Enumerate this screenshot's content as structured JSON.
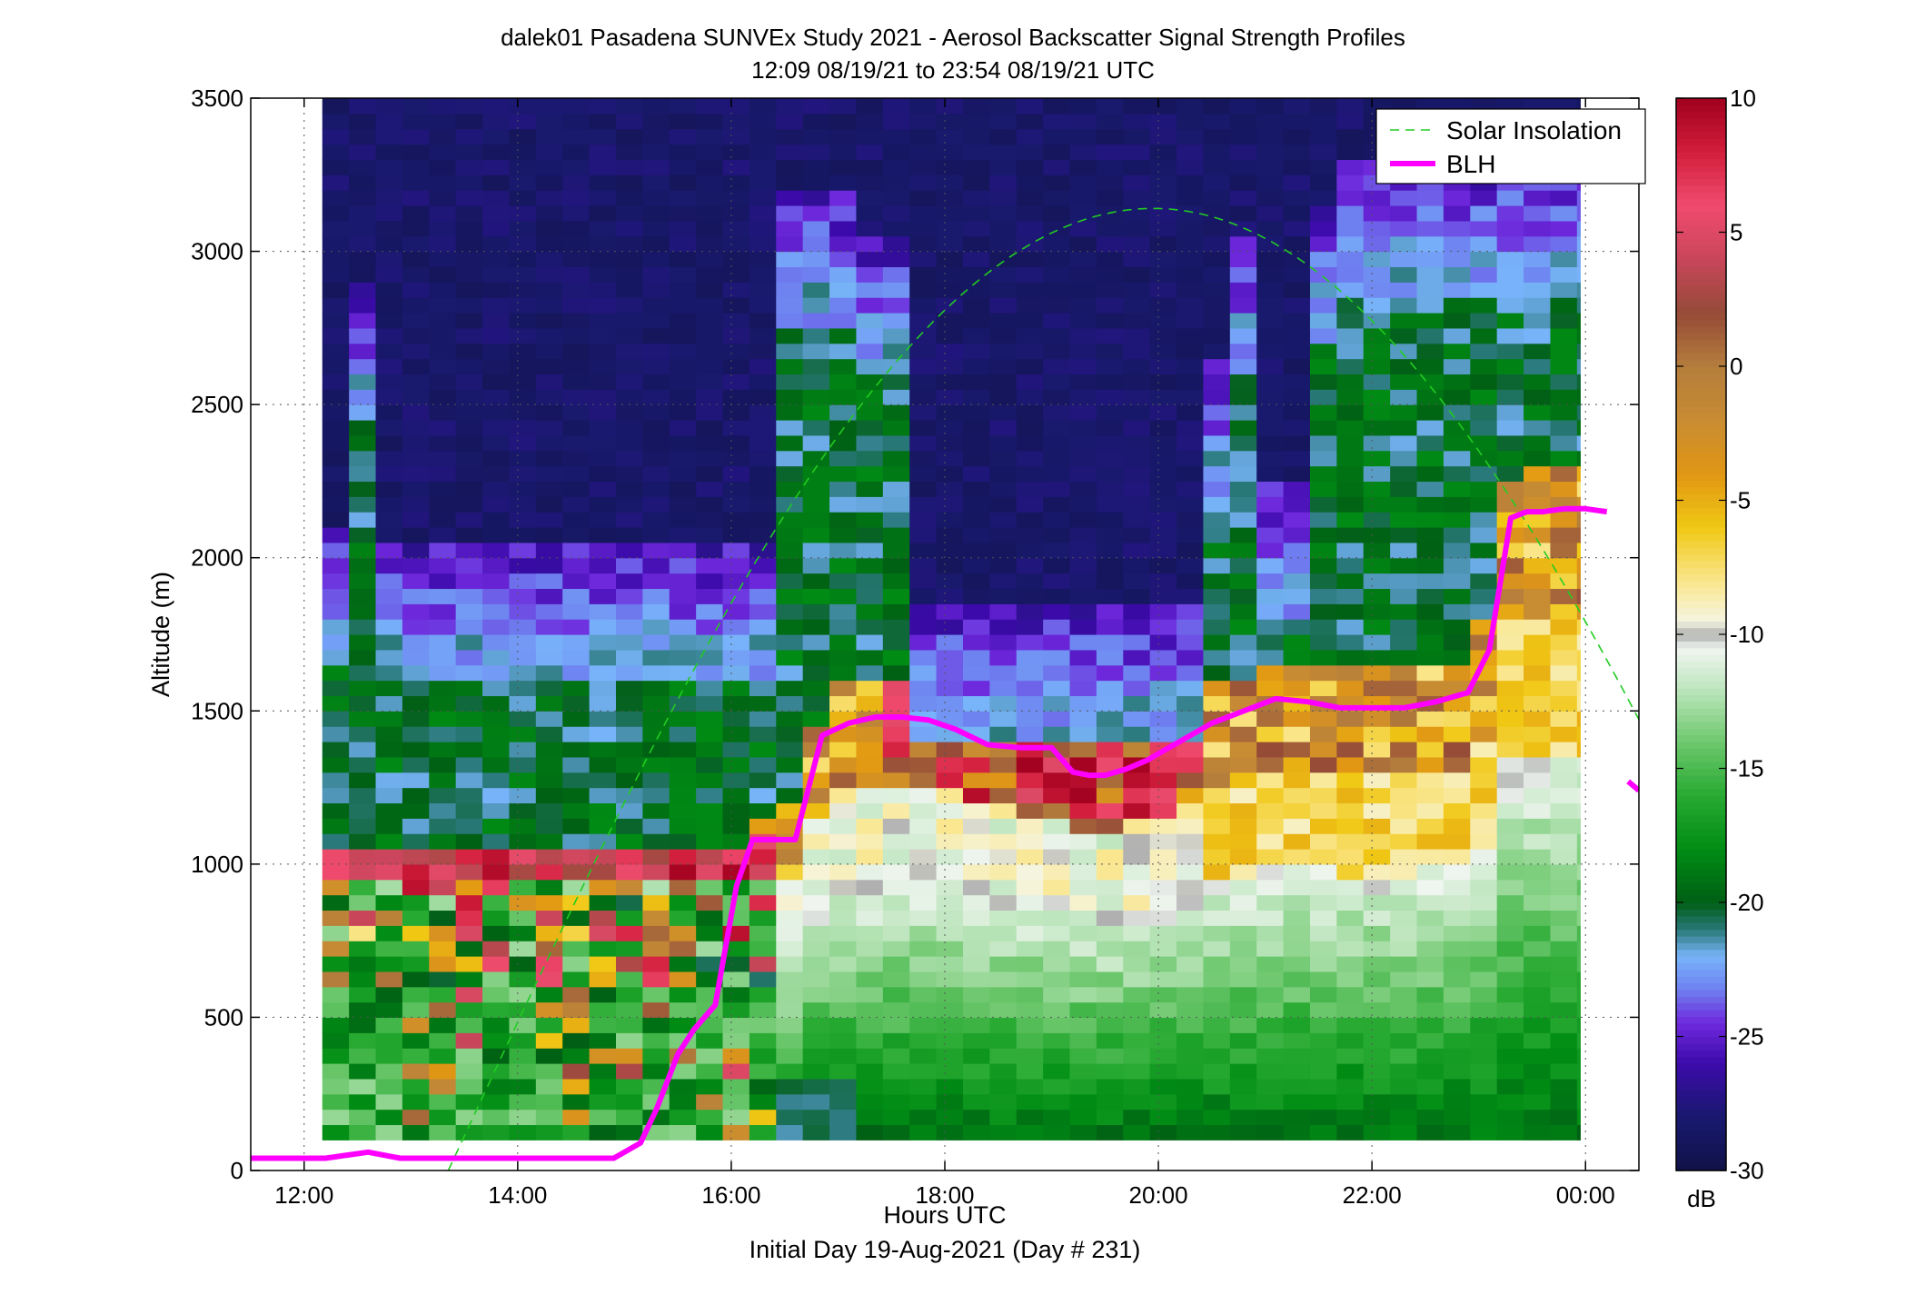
{
  "chart_data": {
    "type": "heatmap",
    "title": "dalek01 Pasadena SUNVEx Study 2021 - Aerosol Backscatter Signal Strength Profiles",
    "subtitle": "12:09 08/19/21 to 23:54 08/19/21  UTC",
    "xlabel": "Hours UTC",
    "xlabel2": "Initial Day 19-Aug-2021 (Day # 231)",
    "ylabel": "Altitude (m)",
    "x_ticks": [
      "12:00",
      "14:00",
      "16:00",
      "18:00",
      "20:00",
      "22:00",
      "00:00"
    ],
    "x_tick_hours": [
      12,
      14,
      16,
      18,
      20,
      22,
      24
    ],
    "xlim": [
      11.5,
      24.5
    ],
    "y_ticks": [
      "0",
      "500",
      "1000",
      "1500",
      "2000",
      "2500",
      "3000",
      "3500"
    ],
    "ylim": [
      0,
      3500
    ],
    "grid": true,
    "colorbar": {
      "range": [
        -30,
        10
      ],
      "ticks": [
        "10",
        "5",
        "0",
        "-5",
        "-10",
        "-15",
        "-20",
        "-25",
        "-30"
      ],
      "unit": "dB"
    },
    "legend": {
      "placement": "top-right",
      "entries": [
        "Solar Insolation",
        "BLH"
      ]
    },
    "series": [
      {
        "name": "BLH",
        "color": "#ff00ff",
        "x_hours": [
          11.5,
          11.9,
          12.2,
          12.4,
          12.6,
          12.9,
          13.2,
          13.6,
          14.0,
          14.5,
          14.9,
          15.15,
          15.3,
          15.5,
          15.65,
          15.85,
          16.05,
          16.2,
          16.35,
          16.6,
          16.85,
          17.1,
          17.35,
          17.6,
          17.85,
          18.1,
          18.4,
          18.7,
          19.0,
          19.2,
          19.35,
          19.5,
          19.7,
          19.9,
          20.1,
          20.3,
          20.5,
          20.8,
          21.1,
          21.4,
          21.7,
          22.0,
          22.3,
          22.6,
          22.9,
          23.1,
          23.3,
          23.45,
          23.6,
          23.8,
          24.0,
          24.2
        ],
        "y_m": [
          40,
          40,
          40,
          50,
          60,
          40,
          40,
          40,
          40,
          40,
          40,
          90,
          200,
          380,
          460,
          540,
          930,
          1080,
          1080,
          1080,
          1420,
          1460,
          1480,
          1480,
          1470,
          1440,
          1390,
          1380,
          1380,
          1300,
          1290,
          1290,
          1310,
          1340,
          1380,
          1420,
          1460,
          1500,
          1540,
          1530,
          1510,
          1510,
          1510,
          1530,
          1560,
          1700,
          2130,
          2150,
          2150,
          2160,
          2160,
          2150
        ]
      },
      {
        "name": "BLH",
        "color": "#ff00ff",
        "x_hours": [
          24.4,
          24.5
        ],
        "y_m": [
          1270,
          1240
        ]
      },
      {
        "name": "Solar Insolation",
        "color": "#22cc22",
        "dashed": true,
        "peak_hour": 19.95,
        "peak_altitude_m": 3140,
        "start_hour": 13.35,
        "end_hour": 24.5,
        "end_altitude_m": 1430
      }
    ]
  }
}
